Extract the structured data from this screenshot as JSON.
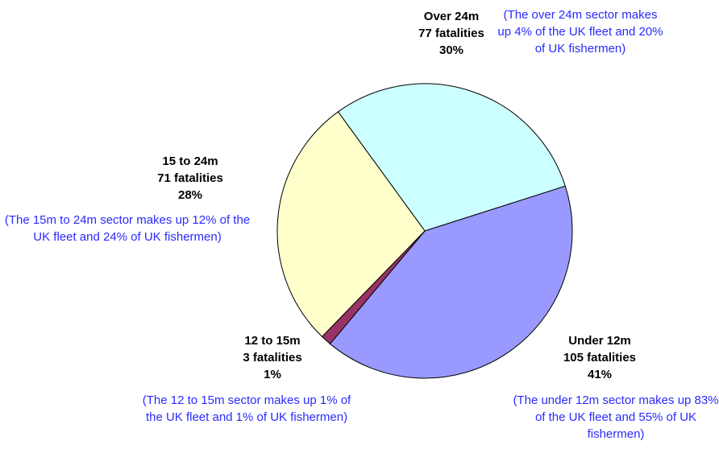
{
  "chart_data": {
    "type": "pie",
    "categories": [
      "Over 24m",
      "Under 12m",
      "12 to 15m",
      "15 to 24m"
    ],
    "values": [
      77,
      105,
      3,
      71
    ],
    "value_labels": [
      "77 fatalities",
      "105 fatalities",
      "3 fatalities",
      "71 fatalities"
    ],
    "shares": [
      {
        "value": 30,
        "label": "30%"
      },
      {
        "value": 41,
        "label": "41%"
      },
      {
        "value": 1,
        "label": "1%"
      },
      {
        "value": 28,
        "label": "28%"
      }
    ],
    "colors": [
      "#ccffff",
      "#9999ff",
      "#993366",
      "#ffffcc"
    ],
    "annotations": [
      "(The over 24m sector makes up 4% of the UK fleet and 20% of UK fishermen)",
      "(The under 12m sector makes up 83% of the UK fleet and 55% of UK fishermen)",
      "(The 12 to 15m sector makes up 1% of the UK fleet and 1% of UK fishermen)",
      "(The 15m to 24m sector makes up 12% of the UK fleet and 24% of UK fishermen)"
    ]
  }
}
